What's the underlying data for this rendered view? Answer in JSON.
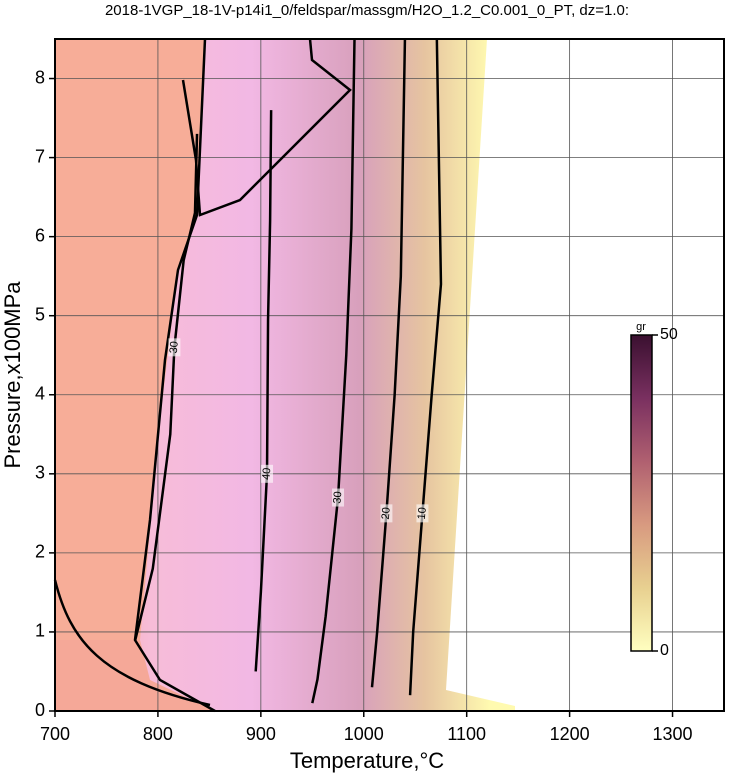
{
  "chart_data": {
    "type": "contour",
    "title": "2018-1VGP_18-1V-p14i1_0/feldspar/massgm/H2O_1.2_C0.001_0_PT, dz=1.0:",
    "x_label": "Temperature,°C",
    "y_label": "Pressure,x100MPa",
    "xlim": [
      700,
      1350
    ],
    "ylim": [
      0,
      8.5
    ],
    "xticks": [
      700,
      800,
      900,
      1000,
      1100,
      1200,
      1300
    ],
    "yticks": [
      0,
      1,
      2,
      3,
      4,
      5,
      6,
      7,
      8
    ],
    "grid": true,
    "line_color": "#000000",
    "contours": [
      {
        "level": 10,
        "x": [
          1071,
          1075,
          1066,
          1057,
          1048,
          1045
        ],
        "y": [
          8.5,
          5.4,
          4,
          2.5,
          1,
          0.2
        ]
      },
      {
        "level": 20,
        "x": [
          1040,
          1036,
          1030,
          1022,
          1013,
          1008
        ],
        "y": [
          8.5,
          5.5,
          4,
          2.5,
          1,
          0.3
        ]
      },
      {
        "level": 30,
        "x": [
          991,
          988,
          983,
          975,
          963,
          955,
          950
        ],
        "y": [
          8.5,
          6.1,
          4.5,
          2.7,
          1.2,
          0.4,
          0.1
        ]
      },
      {
        "level": 40,
        "x": [
          910,
          909,
          907,
          906,
          900,
          895
        ],
        "y": [
          7.6,
          6.2,
          4.95,
          3,
          1.5,
          0.5
        ]
      },
      {
        "level": 30,
        "x": [
          778,
          795,
          812,
          816,
          825,
          836,
          838
        ],
        "y": [
          0.9,
          1.8,
          3.5,
          4.6,
          5.7,
          6.3,
          7.3
        ]
      }
    ],
    "colorbar": {
      "label": "gr",
      "lim": [
        0,
        50
      ],
      "ticks": [
        0,
        50
      ],
      "colors": [
        "#ffffc0",
        "#e8d090",
        "#d89a80",
        "#b06070",
        "#7a3060",
        "#3a1030"
      ]
    }
  }
}
